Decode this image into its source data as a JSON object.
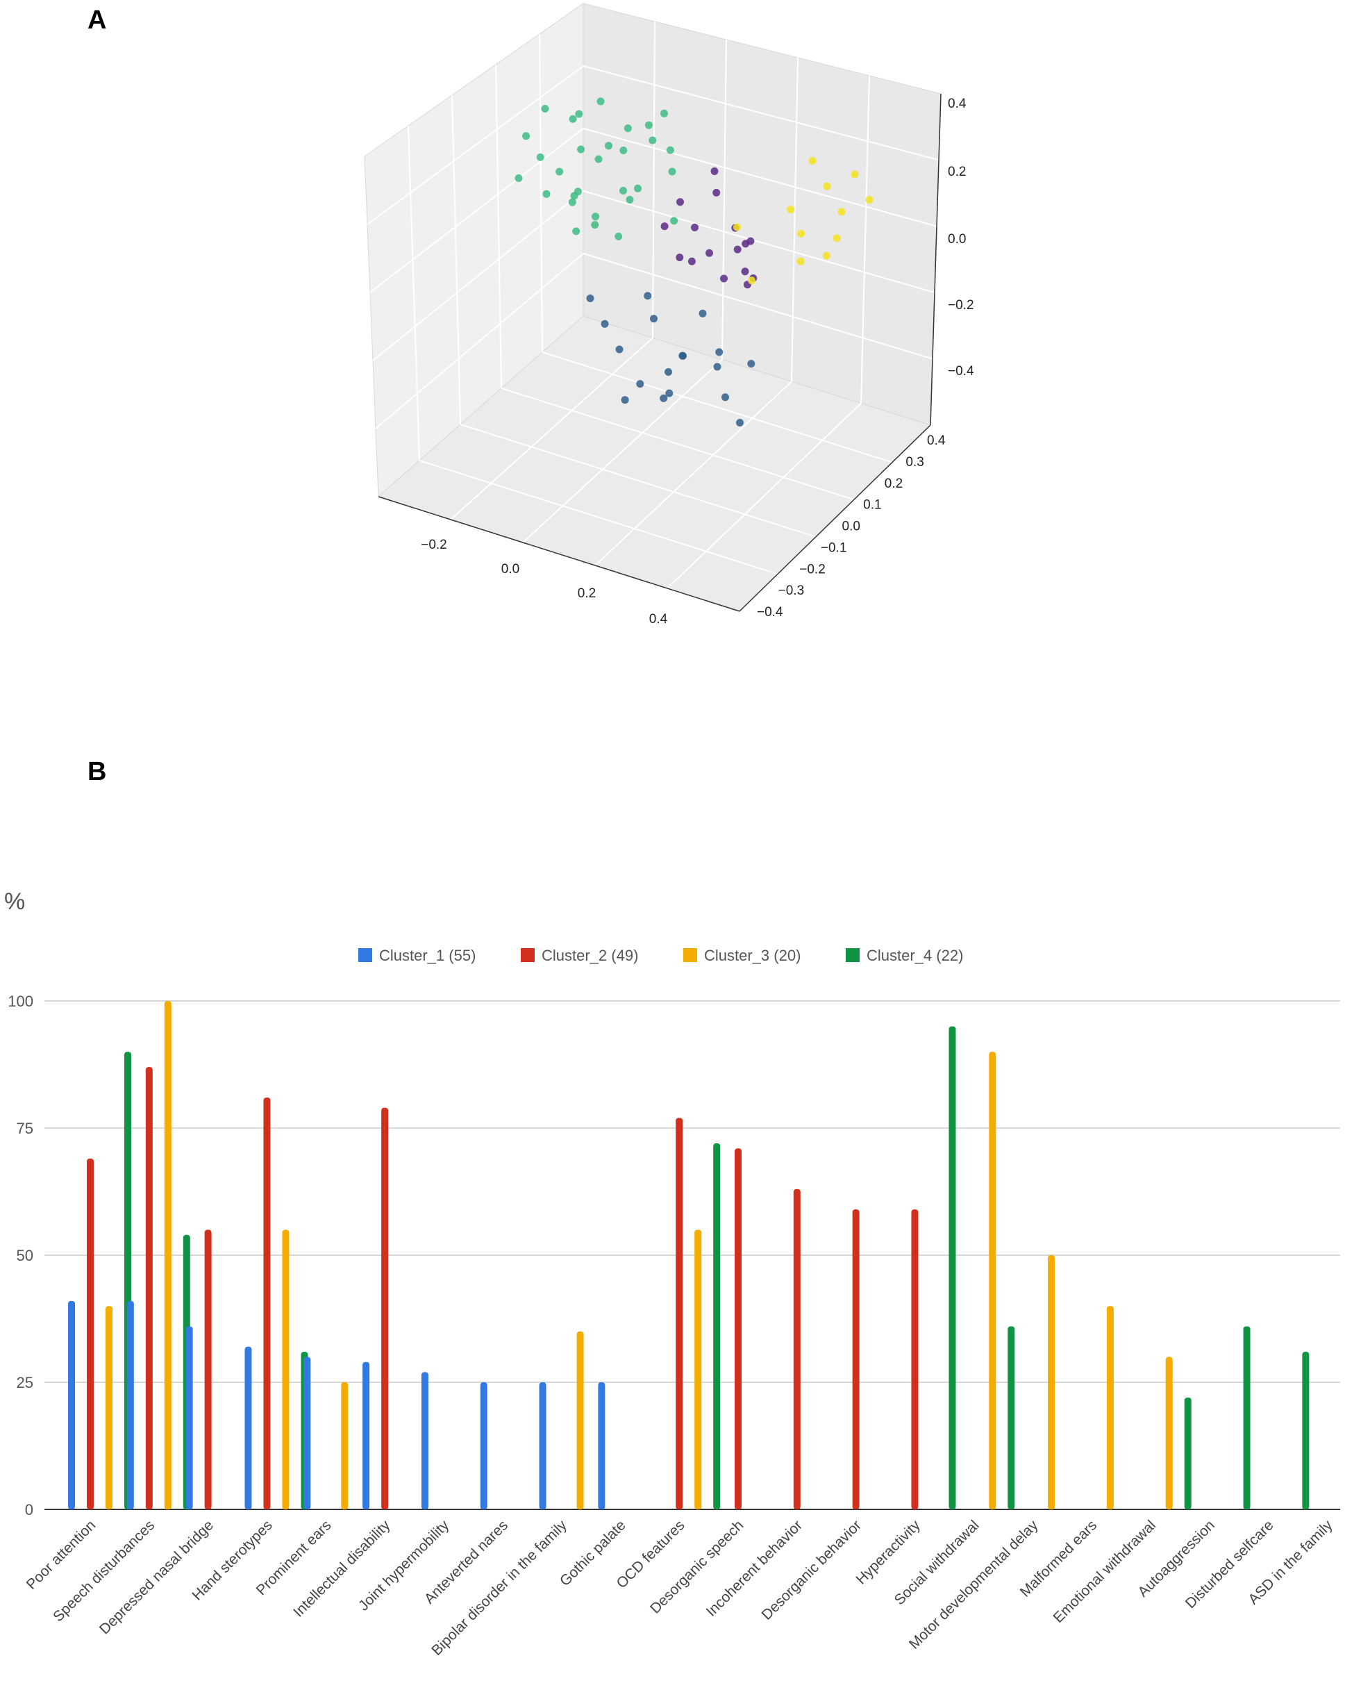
{
  "panels": {
    "a_label": "A",
    "b_label": "B"
  },
  "colors": {
    "cluster_purple": "#5b2a86",
    "cluster_green": "#3dbb84",
    "cluster_blue": "#2f5f8a",
    "cluster_yellow": "#f4e31c",
    "bar_blue": "#3279e3",
    "bar_red": "#d2301f",
    "bar_orange": "#f5ac00",
    "bar_green": "#0e9442"
  },
  "chart_data": [
    {
      "type": "scatter",
      "title": "",
      "projection": "3d",
      "grid": true,
      "x_ticks": [
        "−0.2",
        "0.0",
        "0.2",
        "0.4"
      ],
      "y_ticks": [
        "0.4",
        "0.3",
        "0.2",
        "0.1",
        "0.0",
        "−0.1",
        "−0.2",
        "−0.3",
        "−0.4"
      ],
      "z_ticks": [
        "0.4",
        "0.2",
        "0.0",
        "−0.2",
        "−0.4"
      ],
      "series": [
        {
          "color": "#3dbb84",
          "points": [
            [
              -0.3,
              0.2,
              0.18
            ],
            [
              -0.25,
              0.25,
              0.15
            ],
            [
              -0.22,
              0.2,
              0.2
            ],
            [
              -0.2,
              0.15,
              0.1
            ],
            [
              -0.28,
              0.1,
              0.05
            ],
            [
              -0.18,
              0.22,
              0.05
            ],
            [
              -0.15,
              0.2,
              0.12
            ],
            [
              -0.12,
              0.25,
              0.18
            ],
            [
              -0.1,
              0.15,
              0.0
            ],
            [
              -0.25,
              0.05,
              -0.05
            ],
            [
              -0.2,
              0.1,
              -0.05
            ],
            [
              -0.3,
              0.0,
              0.0
            ],
            [
              -0.22,
              0.15,
              -0.1
            ],
            [
              -0.15,
              0.1,
              -0.1
            ],
            [
              -0.1,
              0.2,
              -0.05
            ],
            [
              -0.08,
              0.28,
              0.2
            ],
            [
              -0.05,
              0.3,
              0.25
            ],
            [
              -0.02,
              0.25,
              0.15
            ],
            [
              -0.18,
              0.05,
              -0.15
            ],
            [
              -0.12,
              0.0,
              -0.08
            ],
            [
              -0.05,
              0.1,
              0.05
            ],
            [
              0.0,
              0.2,
              0.1
            ],
            [
              -0.26,
              0.18,
              -0.02
            ],
            [
              -0.14,
              0.28,
              0.08
            ],
            [
              0.02,
              0.15,
              -0.05
            ],
            [
              -0.08,
              0.05,
              -0.12
            ],
            [
              -0.2,
              0.3,
              0.22
            ],
            [
              -0.32,
              0.12,
              0.1
            ],
            [
              -0.16,
              0.0,
              0.02
            ],
            [
              -0.04,
              0.18,
              0.2
            ]
          ]
        },
        {
          "color": "#5b2a86",
          "points": [
            [
              0.05,
              0.1,
              0.05
            ],
            [
              0.1,
              0.05,
              0.0
            ],
            [
              0.12,
              0.15,
              0.1
            ],
            [
              0.15,
              0.0,
              -0.05
            ],
            [
              0.18,
              0.1,
              0.02
            ],
            [
              0.2,
              -0.05,
              -0.1
            ],
            [
              0.22,
              0.05,
              0.0
            ],
            [
              0.08,
              0.0,
              -0.1
            ],
            [
              0.14,
              -0.1,
              -0.05
            ],
            [
              0.24,
              0.0,
              -0.12
            ],
            [
              0.25,
              -0.05,
              -0.05
            ],
            [
              0.1,
              0.2,
              0.15
            ],
            [
              0.17,
              0.15,
              -0.08
            ],
            [
              0.06,
              -0.05,
              0.02
            ],
            [
              0.21,
              0.12,
              -0.02
            ],
            [
              0.26,
              -0.02,
              -0.08
            ]
          ]
        },
        {
          "color": "#2f5f8a",
          "points": [
            [
              -0.05,
              -0.15,
              -0.35
            ],
            [
              0.0,
              -0.2,
              -0.4
            ],
            [
              0.05,
              -0.1,
              -0.3
            ],
            [
              0.1,
              -0.15,
              -0.45
            ],
            [
              0.15,
              -0.2,
              -0.35
            ],
            [
              0.2,
              -0.1,
              -0.4
            ],
            [
              0.12,
              -0.25,
              -0.5
            ],
            [
              0.08,
              -0.3,
              -0.45
            ],
            [
              0.18,
              -0.3,
              -0.3
            ],
            [
              0.25,
              -0.2,
              -0.45
            ],
            [
              -0.1,
              -0.1,
              -0.3
            ],
            [
              0.02,
              -0.05,
              -0.25
            ],
            [
              0.15,
              -0.05,
              -0.25
            ],
            [
              0.22,
              -0.15,
              -0.32
            ],
            [
              0.06,
              -0.35,
              -0.5
            ],
            [
              0.18,
              -0.4,
              -0.4
            ],
            [
              0.28,
              -0.1,
              -0.35
            ],
            [
              0.3,
              -0.25,
              -0.5
            ]
          ]
        },
        {
          "color": "#f4e31c",
          "points": [
            [
              0.3,
              0.3,
              0.25
            ],
            [
              0.35,
              0.25,
              0.2
            ],
            [
              0.4,
              0.2,
              0.15
            ],
            [
              0.28,
              0.2,
              0.1
            ],
            [
              0.32,
              0.15,
              0.05
            ],
            [
              0.38,
              0.15,
              0.0
            ],
            [
              0.42,
              0.1,
              0.1
            ],
            [
              0.45,
              0.25,
              0.2
            ],
            [
              0.25,
              0.0,
              -0.1
            ],
            [
              0.35,
              0.05,
              0.0
            ],
            [
              0.2,
              0.05,
              0.05
            ],
            [
              0.4,
              0.3,
              0.25
            ]
          ]
        }
      ]
    },
    {
      "type": "bar",
      "ylabel": "%",
      "ylim": [
        0,
        100
      ],
      "y_ticks": [
        0,
        25,
        50,
        75,
        100
      ],
      "grid": true,
      "legend_position": "top-center",
      "categories": [
        "Poor attention",
        "Speech disturbances",
        "Depressed nasal bridge",
        "Hand sterotypes",
        "Prominent ears",
        "Intellectual disability",
        "Joint hypermobility",
        "Anteverted nares",
        "Bipolar disorder in the family",
        "Gothic palate",
        "OCD features",
        "Desorganic speech",
        "Incoherent behavior",
        "Desorganic behavior",
        "Hyperactivity",
        "Social withdrawal",
        "Motor developmental delay",
        "Malformed ears",
        "Emotional withdrawal",
        "Autoaggression",
        "Disturbed selfcare",
        "ASD in the family"
      ],
      "series": [
        {
          "name": "Cluster_1 (55)",
          "color": "#3279e3",
          "values": [
            41,
            41,
            36,
            32,
            30,
            29,
            27,
            25,
            25,
            25,
            0,
            0,
            0,
            0,
            0,
            0,
            0,
            0,
            0,
            0,
            0,
            0
          ]
        },
        {
          "name": "Cluster_2 (49)",
          "color": "#d2301f",
          "values": [
            69,
            87,
            55,
            81,
            0,
            79,
            0,
            0,
            0,
            0,
            77,
            71,
            63,
            59,
            59,
            0,
            0,
            0,
            0,
            0,
            0,
            0
          ]
        },
        {
          "name": "Cluster_3 (20)",
          "color": "#f5ac00",
          "values": [
            40,
            100,
            0,
            55,
            25,
            0,
            0,
            0,
            35,
            0,
            55,
            0,
            0,
            0,
            0,
            90,
            50,
            40,
            30,
            0,
            0,
            0
          ]
        },
        {
          "name": "Cluster_4 (22)",
          "color": "#0e9442",
          "values": [
            90,
            54,
            0,
            31,
            0,
            0,
            0,
            0,
            0,
            0,
            72,
            0,
            0,
            0,
            95,
            36,
            0,
            0,
            22,
            36,
            31,
            22
          ]
        }
      ]
    }
  ]
}
